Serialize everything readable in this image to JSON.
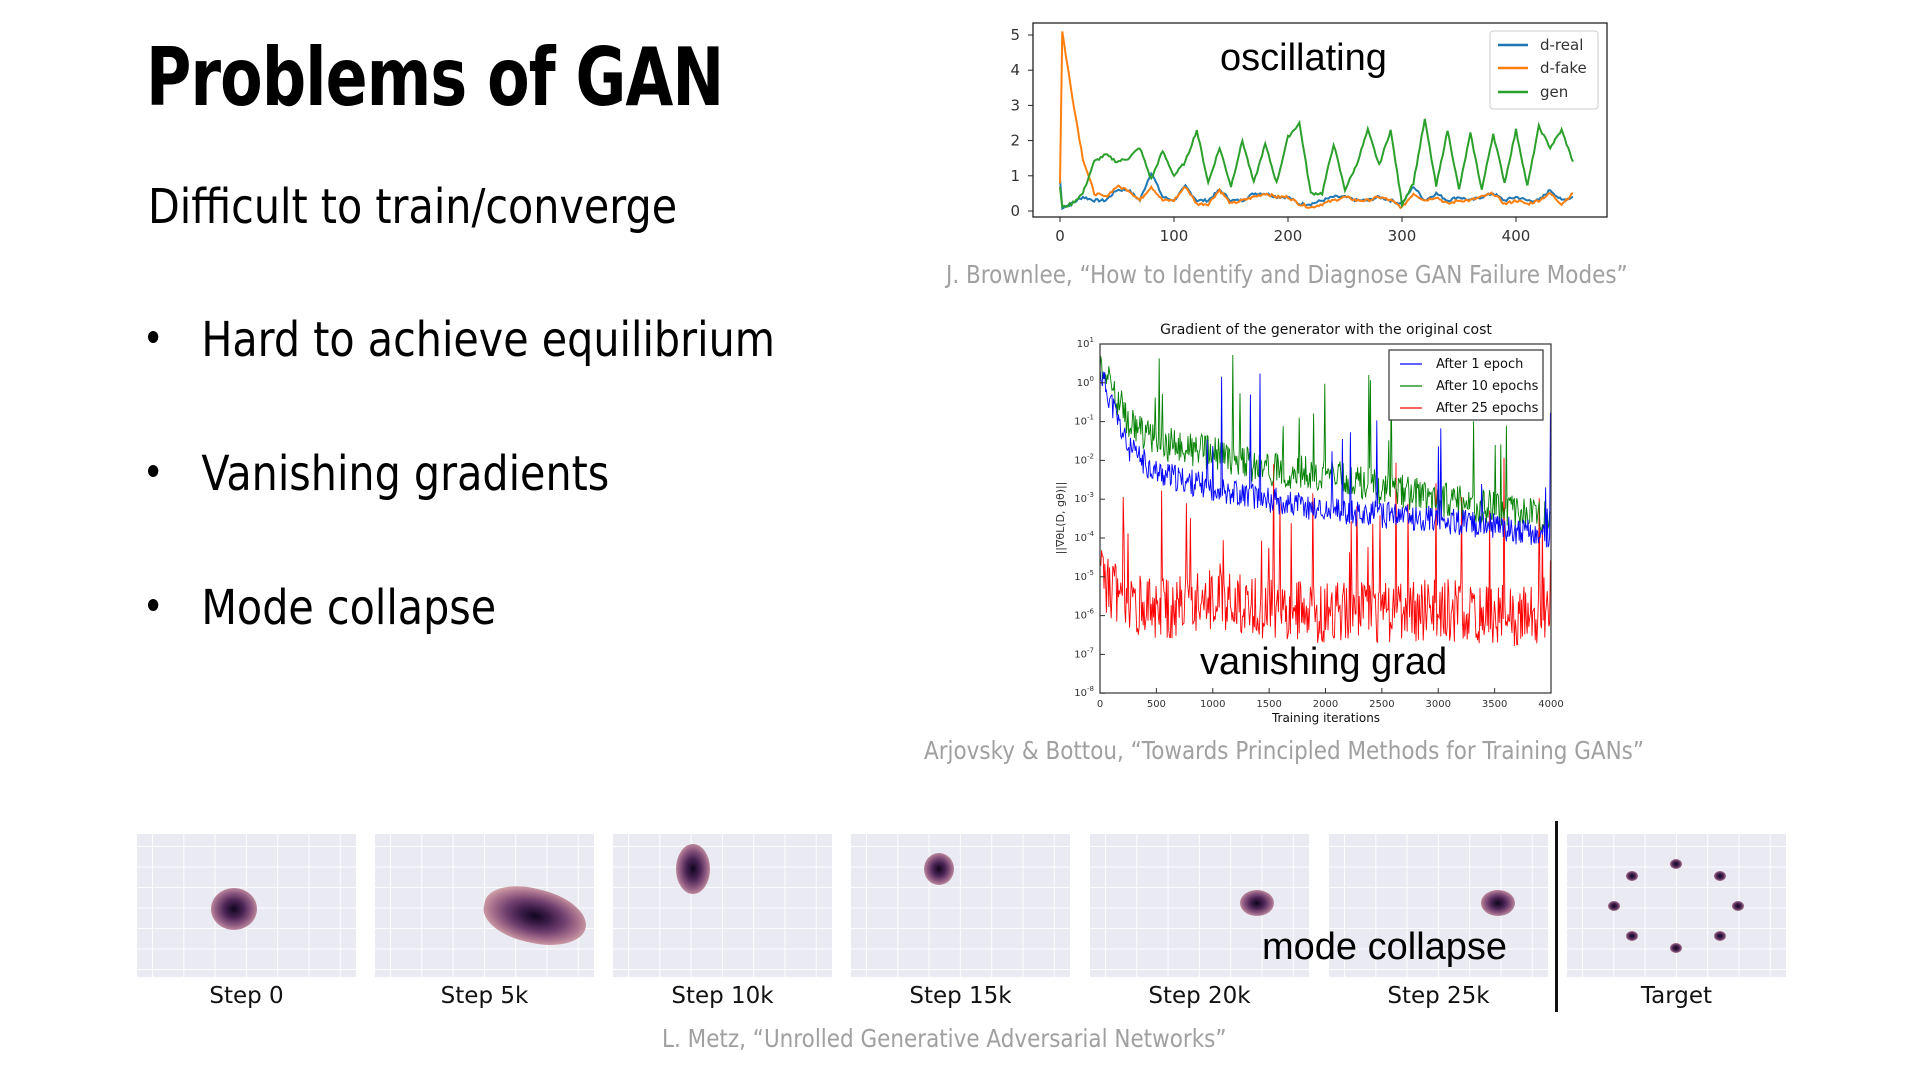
{
  "slide": {
    "title": "Problems of GAN",
    "subtitle": "Difficult to train/converge",
    "bullets": [
      {
        "label": "Hard to achieve equilibrium"
      },
      {
        "label": "Vanishing gradients"
      },
      {
        "label": "Mode collapse"
      }
    ]
  },
  "figures": {
    "oscillation": {
      "annotation": "oscillating",
      "citation": "J. Brownlee, “How to Identify and Diagnose GAN Failure Modes”"
    },
    "vanishing": {
      "annotation": "vanishing grad",
      "citation": "Arjovsky & Bottou, “Towards Principled Methods for Training GANs”"
    },
    "mode_collapse": {
      "annotation": "mode collapse",
      "citation": "L. Metz, “Unrolled Generative Adversarial Networks”",
      "panels": [
        {
          "label": "Step 0"
        },
        {
          "label": "Step 5k"
        },
        {
          "label": "Step 10k"
        },
        {
          "label": "Step 15k"
        },
        {
          "label": "Step 20k"
        },
        {
          "label": "Step 25k"
        },
        {
          "label": "Target"
        }
      ]
    }
  },
  "colors": {
    "d_real": "#1f77b4",
    "d_fake": "#ff7f0e",
    "gen": "#2ca02c",
    "after_1": "#0000ff",
    "after_10": "#008000",
    "after_25": "#ff0000",
    "citation": "#a0a0a0",
    "panel_bg": "#eaeaf2"
  },
  "chart_data": [
    {
      "type": "line",
      "title": "",
      "annotation": "oscillating",
      "xlabel": "",
      "ylabel": "",
      "xlim": [
        -20,
        470
      ],
      "ylim": [
        -0.2,
        5.2
      ],
      "xticks": [
        0,
        100,
        200,
        300,
        400
      ],
      "yticks": [
        0,
        1,
        2,
        3,
        4,
        5
      ],
      "legend_position": "upper right",
      "grid": false,
      "x": [
        0,
        2,
        10,
        20,
        30,
        40,
        50,
        60,
        70,
        80,
        90,
        100,
        110,
        120,
        130,
        140,
        150,
        160,
        170,
        180,
        190,
        200,
        210,
        220,
        230,
        240,
        250,
        260,
        270,
        280,
        290,
        300,
        310,
        320,
        330,
        340,
        350,
        360,
        370,
        380,
        390,
        400,
        410,
        420,
        430,
        440,
        450
      ],
      "series": [
        {
          "name": "d-real",
          "values": [
            0.9,
            0.1,
            0.2,
            0.4,
            0.3,
            0.3,
            0.6,
            0.6,
            0.3,
            1.1,
            0.4,
            0.3,
            0.7,
            0.3,
            0.3,
            0.6,
            0.3,
            0.3,
            0.5,
            0.5,
            0.4,
            0.4,
            0.2,
            0.2,
            0.3,
            0.4,
            0.4,
            0.3,
            0.3,
            0.4,
            0.3,
            0.2,
            0.7,
            0.3,
            0.5,
            0.3,
            0.4,
            0.3,
            0.4,
            0.5,
            0.3,
            0.4,
            0.3,
            0.3,
            0.6,
            0.3,
            0.4
          ]
        },
        {
          "name": "d-fake",
          "values": [
            0.8,
            5.1,
            3.4,
            1.5,
            0.5,
            0.4,
            0.7,
            0.6,
            0.3,
            0.7,
            0.3,
            0.3,
            0.7,
            0.2,
            0.2,
            0.6,
            0.2,
            0.3,
            0.4,
            0.5,
            0.4,
            0.4,
            0.2,
            0.1,
            0.2,
            0.3,
            0.4,
            0.3,
            0.3,
            0.4,
            0.3,
            0.1,
            0.5,
            0.3,
            0.4,
            0.2,
            0.3,
            0.3,
            0.4,
            0.5,
            0.2,
            0.3,
            0.2,
            0.3,
            0.5,
            0.2,
            0.5
          ]
        },
        {
          "name": "gen",
          "values": [
            0.7,
            0.1,
            0.2,
            0.5,
            1.4,
            1.6,
            1.4,
            1.5,
            1.8,
            0.9,
            1.7,
            1.0,
            1.4,
            2.3,
            0.8,
            1.8,
            0.7,
            2.0,
            0.8,
            1.9,
            0.8,
            2.1,
            2.5,
            0.5,
            0.5,
            1.9,
            0.6,
            1.3,
            2.3,
            1.3,
            2.3,
            0.2,
            0.8,
            2.6,
            0.7,
            2.3,
            0.6,
            2.2,
            0.6,
            2.2,
            0.8,
            2.3,
            0.7,
            2.4,
            1.8,
            2.3,
            1.4
          ]
        }
      ]
    },
    {
      "type": "line",
      "title": "Gradient of the generator with the original cost",
      "annotation": "vanishing grad",
      "xlabel": "Training iterations",
      "ylabel": "||∇θL(D, gθ)||",
      "yscale": "log",
      "xlim": [
        0,
        4000
      ],
      "ylim": [
        1e-08,
        10
      ],
      "xticks": [
        0,
        500,
        1000,
        1500,
        2000,
        2500,
        3000,
        3500,
        4000
      ],
      "yticks": [
        "10^1",
        "10^0",
        "10^-1",
        "10^-2",
        "10^-3",
        "10^-4",
        "10^-5",
        "10^-6",
        "10^-7",
        "10^-8"
      ],
      "legend_position": "upper right",
      "grid": false,
      "x": [
        0,
        250,
        500,
        750,
        1000,
        1500,
        2000,
        2500,
        3000,
        3500,
        4000
      ],
      "series": [
        {
          "name": "After 1 epoch",
          "values": [
            2,
            0.02,
            0.005,
            0.003,
            0.002,
            0.001,
            0.0005,
            0.0004,
            0.0003,
            0.0002,
            0.0001
          ]
        },
        {
          "name": "After 10 epochs",
          "values": [
            4,
            0.1,
            0.03,
            0.02,
            0.015,
            0.006,
            0.004,
            0.002,
            0.001,
            0.0006,
            0.0003
          ]
        },
        {
          "name": "After 25 epochs",
          "values": [
            1e-05,
            2e-06,
            1.5e-06,
            1.5e-06,
            3e-06,
            1.5e-06,
            1.2e-06,
            1.2e-06,
            1.5e-06,
            1e-06,
            1e-06
          ]
        }
      ]
    }
  ]
}
